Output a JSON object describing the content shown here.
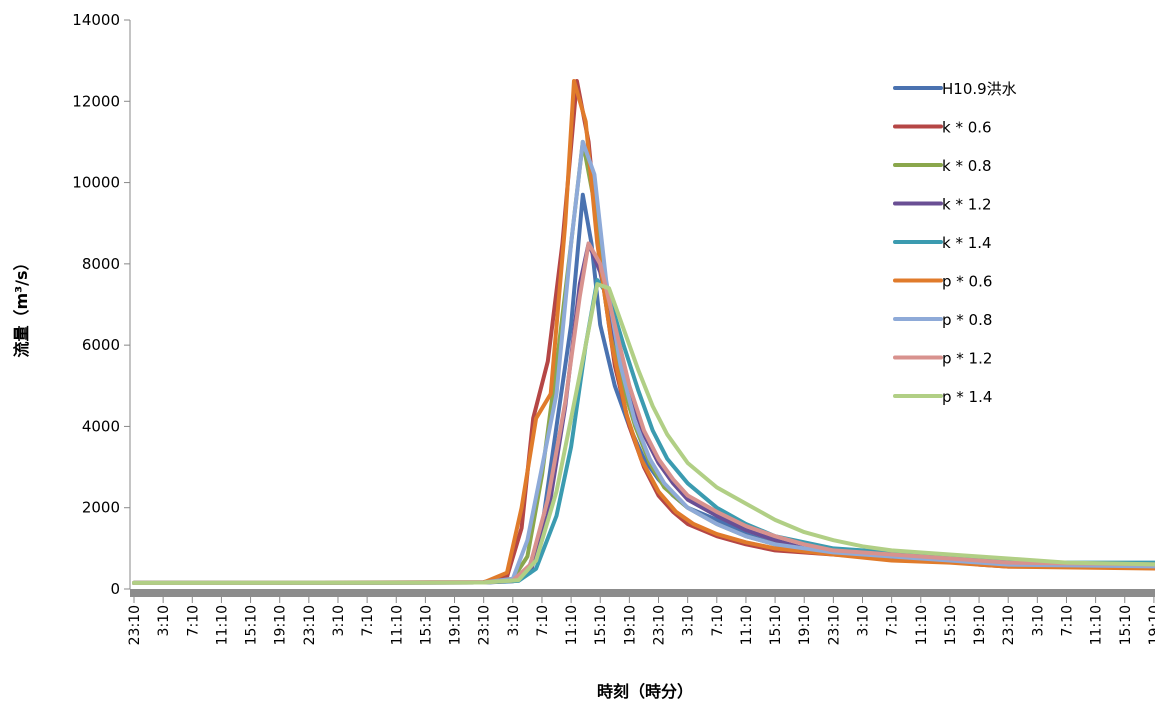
{
  "chart_data": {
    "type": "line",
    "xlabel": "時刻（時分）",
    "ylabel": "流量（m³/s）",
    "ylim": [
      0,
      14000
    ],
    "yticks": [
      0,
      2000,
      4000,
      6000,
      8000,
      10000,
      12000,
      14000
    ],
    "xticks": [
      "23:10",
      "3:10",
      "7:10",
      "11:10",
      "15:10",
      "19:10",
      "23:10",
      "3:10",
      "7:10",
      "11:10",
      "15:10",
      "19:10",
      "23:10",
      "3:10",
      "7:10",
      "11:10",
      "15:10",
      "19:10",
      "23:10",
      "3:10",
      "7:10",
      "11:10",
      "15:10",
      "19:10",
      "23:10",
      "3:10",
      "7:10",
      "11:10",
      "15:10",
      "19:10",
      "23:10",
      "3:10",
      "7:10",
      "11:10",
      "15:10",
      "19:10"
    ],
    "x_unit": "4-hour steps from first tick (0 = 23:10)",
    "legend_position": "top-right",
    "grid": false,
    "series": [
      {
        "name": "H10.9洪水",
        "color": "#4a72b0",
        "points": [
          [
            0,
            150
          ],
          [
            12,
            160
          ],
          [
            13,
            200
          ],
          [
            13.5,
            400
          ],
          [
            14,
            1500
          ],
          [
            14.5,
            4000
          ],
          [
            15,
            6500
          ],
          [
            15.4,
            9700
          ],
          [
            15.7,
            8500
          ],
          [
            16,
            6500
          ],
          [
            16.5,
            5000
          ],
          [
            17,
            4000
          ],
          [
            17.5,
            3200
          ],
          [
            18,
            2700
          ],
          [
            18.5,
            2300
          ],
          [
            19,
            2000
          ],
          [
            20,
            1700
          ],
          [
            21,
            1350
          ],
          [
            22,
            1100
          ],
          [
            23,
            950
          ],
          [
            24,
            900
          ],
          [
            25,
            850
          ],
          [
            27,
            800
          ],
          [
            29,
            700
          ],
          [
            30,
            650
          ],
          [
            31,
            600
          ],
          [
            35.5,
            600
          ]
        ]
      },
      {
        "name": "k * 0.6",
        "color": "#b54645",
        "points": [
          [
            0,
            150
          ],
          [
            12,
            170
          ],
          [
            12.8,
            300
          ],
          [
            13.3,
            1500
          ],
          [
            13.7,
            4200
          ],
          [
            14.2,
            5600
          ],
          [
            14.7,
            8500
          ],
          [
            15.2,
            12500
          ],
          [
            15.6,
            11000
          ],
          [
            16,
            8000
          ],
          [
            16.5,
            5500
          ],
          [
            17,
            4000
          ],
          [
            17.5,
            3000
          ],
          [
            18,
            2300
          ],
          [
            18.5,
            1900
          ],
          [
            19,
            1600
          ],
          [
            20,
            1300
          ],
          [
            21,
            1100
          ],
          [
            22,
            950
          ],
          [
            24,
            850
          ],
          [
            26,
            750
          ],
          [
            28,
            700
          ],
          [
            29,
            600
          ],
          [
            30,
            550
          ],
          [
            35.5,
            550
          ]
        ]
      },
      {
        "name": "k * 0.8",
        "color": "#8aa74c",
        "points": [
          [
            0,
            150
          ],
          [
            12,
            160
          ],
          [
            13,
            250
          ],
          [
            13.5,
            800
          ],
          [
            14,
            2800
          ],
          [
            14.5,
            5500
          ],
          [
            15,
            8500
          ],
          [
            15.4,
            11000
          ],
          [
            15.8,
            9500
          ],
          [
            16.2,
            7000
          ],
          [
            16.7,
            5200
          ],
          [
            17.2,
            4000
          ],
          [
            17.7,
            3100
          ],
          [
            18.2,
            2500
          ],
          [
            19,
            2000
          ],
          [
            20,
            1600
          ],
          [
            21,
            1300
          ],
          [
            22,
            1100
          ],
          [
            24,
            900
          ],
          [
            26,
            800
          ],
          [
            28,
            700
          ],
          [
            30,
            600
          ],
          [
            35.5,
            600
          ]
        ]
      },
      {
        "name": "k * 1.2",
        "color": "#6a4f94",
        "points": [
          [
            0,
            150
          ],
          [
            12,
            160
          ],
          [
            13,
            190
          ],
          [
            13.6,
            400
          ],
          [
            14.2,
            1800
          ],
          [
            14.8,
            4500
          ],
          [
            15.3,
            7500
          ],
          [
            15.6,
            8500
          ],
          [
            16,
            7800
          ],
          [
            16.5,
            6200
          ],
          [
            17,
            4800
          ],
          [
            17.5,
            3800
          ],
          [
            18,
            3100
          ],
          [
            18.5,
            2600
          ],
          [
            19,
            2200
          ],
          [
            20,
            1800
          ],
          [
            21,
            1450
          ],
          [
            22,
            1200
          ],
          [
            23,
            1000
          ],
          [
            24,
            900
          ],
          [
            26,
            800
          ],
          [
            28,
            700
          ],
          [
            30,
            600
          ],
          [
            35.5,
            600
          ]
        ]
      },
      {
        "name": "k * 1.4",
        "color": "#3b9bb0",
        "points": [
          [
            0,
            150
          ],
          [
            12,
            160
          ],
          [
            13.2,
            200
          ],
          [
            13.8,
            500
          ],
          [
            14.5,
            1800
          ],
          [
            15,
            3500
          ],
          [
            15.5,
            6000
          ],
          [
            15.9,
            7600
          ],
          [
            16.3,
            7200
          ],
          [
            16.8,
            6000
          ],
          [
            17.3,
            4900
          ],
          [
            17.8,
            3900
          ],
          [
            18.3,
            3200
          ],
          [
            19,
            2600
          ],
          [
            20,
            2000
          ],
          [
            21,
            1600
          ],
          [
            22,
            1300
          ],
          [
            24,
            1000
          ],
          [
            26,
            900
          ],
          [
            28,
            800
          ],
          [
            30,
            700
          ],
          [
            31,
            650
          ],
          [
            35.5,
            650
          ]
        ]
      },
      {
        "name": "p * 0.6",
        "color": "#e07b2b",
        "points": [
          [
            0,
            150
          ],
          [
            12,
            160
          ],
          [
            12.8,
            400
          ],
          [
            13.3,
            2000
          ],
          [
            13.8,
            4200
          ],
          [
            14.3,
            4800
          ],
          [
            14.8,
            9000
          ],
          [
            15.1,
            12500
          ],
          [
            15.5,
            11500
          ],
          [
            15.9,
            8500
          ],
          [
            16.4,
            6000
          ],
          [
            16.9,
            4300
          ],
          [
            17.4,
            3200
          ],
          [
            18,
            2400
          ],
          [
            18.6,
            1900
          ],
          [
            19.2,
            1600
          ],
          [
            20,
            1350
          ],
          [
            21,
            1150
          ],
          [
            22,
            1000
          ],
          [
            24,
            850
          ],
          [
            26,
            700
          ],
          [
            28,
            650
          ],
          [
            30,
            550
          ],
          [
            35.5,
            500
          ]
        ]
      },
      {
        "name": "p * 0.8",
        "color": "#8eaad8",
        "points": [
          [
            0,
            150
          ],
          [
            12,
            160
          ],
          [
            13,
            250
          ],
          [
            13.5,
            1200
          ],
          [
            14,
            3000
          ],
          [
            14.5,
            4800
          ],
          [
            15,
            8500
          ],
          [
            15.4,
            11000
          ],
          [
            15.8,
            10200
          ],
          [
            16.2,
            7600
          ],
          [
            16.7,
            5500
          ],
          [
            17.2,
            4100
          ],
          [
            17.7,
            3200
          ],
          [
            18.2,
            2600
          ],
          [
            19,
            2000
          ],
          [
            20,
            1600
          ],
          [
            21,
            1300
          ],
          [
            22,
            1100
          ],
          [
            24,
            900
          ],
          [
            26,
            800
          ],
          [
            28,
            700
          ],
          [
            30,
            600
          ],
          [
            35.5,
            550
          ]
        ]
      },
      {
        "name": "p * 1.2",
        "color": "#d8928e",
        "points": [
          [
            0,
            150
          ],
          [
            12,
            160
          ],
          [
            13,
            210
          ],
          [
            13.6,
            600
          ],
          [
            14.2,
            2200
          ],
          [
            14.8,
            4600
          ],
          [
            15.3,
            7200
          ],
          [
            15.6,
            8500
          ],
          [
            16,
            8000
          ],
          [
            16.5,
            6500
          ],
          [
            17,
            5000
          ],
          [
            17.5,
            3900
          ],
          [
            18,
            3200
          ],
          [
            18.5,
            2700
          ],
          [
            19,
            2300
          ],
          [
            20,
            1900
          ],
          [
            21,
            1550
          ],
          [
            22,
            1300
          ],
          [
            23,
            1100
          ],
          [
            24,
            950
          ],
          [
            26,
            850
          ],
          [
            28,
            750
          ],
          [
            30,
            650
          ],
          [
            35.5,
            600
          ]
        ]
      },
      {
        "name": "p * 1.4",
        "color": "#b1cf85",
        "points": [
          [
            0,
            150
          ],
          [
            12,
            160
          ],
          [
            13.2,
            220
          ],
          [
            13.8,
            700
          ],
          [
            14.5,
            2400
          ],
          [
            15,
            4200
          ],
          [
            15.5,
            6000
          ],
          [
            15.9,
            7500
          ],
          [
            16.3,
            7400
          ],
          [
            16.8,
            6400
          ],
          [
            17.3,
            5400
          ],
          [
            17.8,
            4500
          ],
          [
            18.3,
            3800
          ],
          [
            19,
            3100
          ],
          [
            20,
            2500
          ],
          [
            21,
            2100
          ],
          [
            22,
            1700
          ],
          [
            23,
            1400
          ],
          [
            24,
            1200
          ],
          [
            25,
            1050
          ],
          [
            26,
            950
          ],
          [
            28,
            850
          ],
          [
            30,
            750
          ],
          [
            32,
            650
          ],
          [
            35.5,
            600
          ]
        ]
      }
    ]
  }
}
